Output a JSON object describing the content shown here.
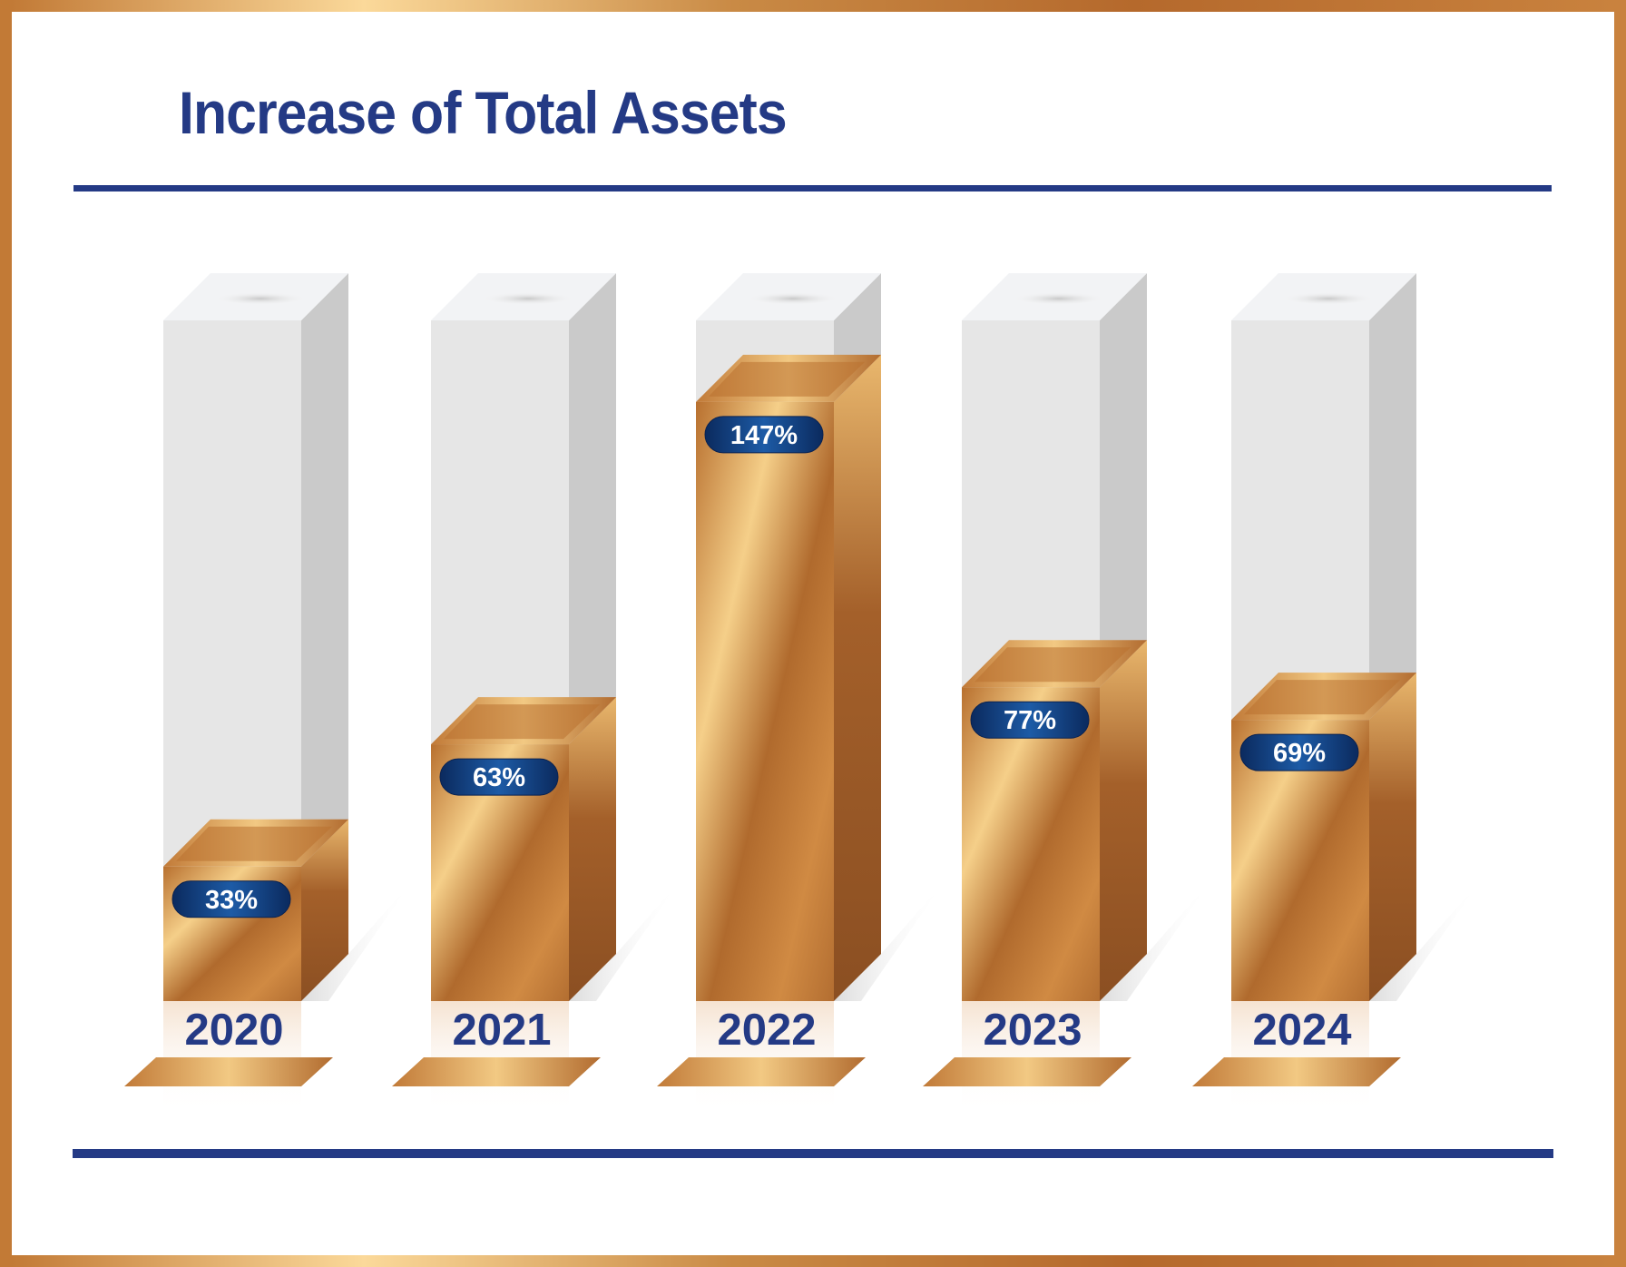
{
  "title": "Increase of Total Assets",
  "colors": {
    "title": "#243a85",
    "rule": "#243a85",
    "frame": "#c5833f",
    "bar_gold": "#c8843f",
    "label_pill": "#0d2f6b"
  },
  "chart_data": {
    "type": "bar",
    "style": "3d",
    "title": "Increase of Total Assets",
    "categories": [
      "2020",
      "2021",
      "2022",
      "2023",
      "2024"
    ],
    "values": [
      33,
      63,
      147,
      77,
      69
    ],
    "value_labels": [
      "33%",
      "63%",
      "147%",
      "77%",
      "69%"
    ],
    "unit": "%",
    "ylim": [
      0,
      167
    ],
    "xlabel": "",
    "ylabel": "",
    "grid": false,
    "legend": "none"
  }
}
